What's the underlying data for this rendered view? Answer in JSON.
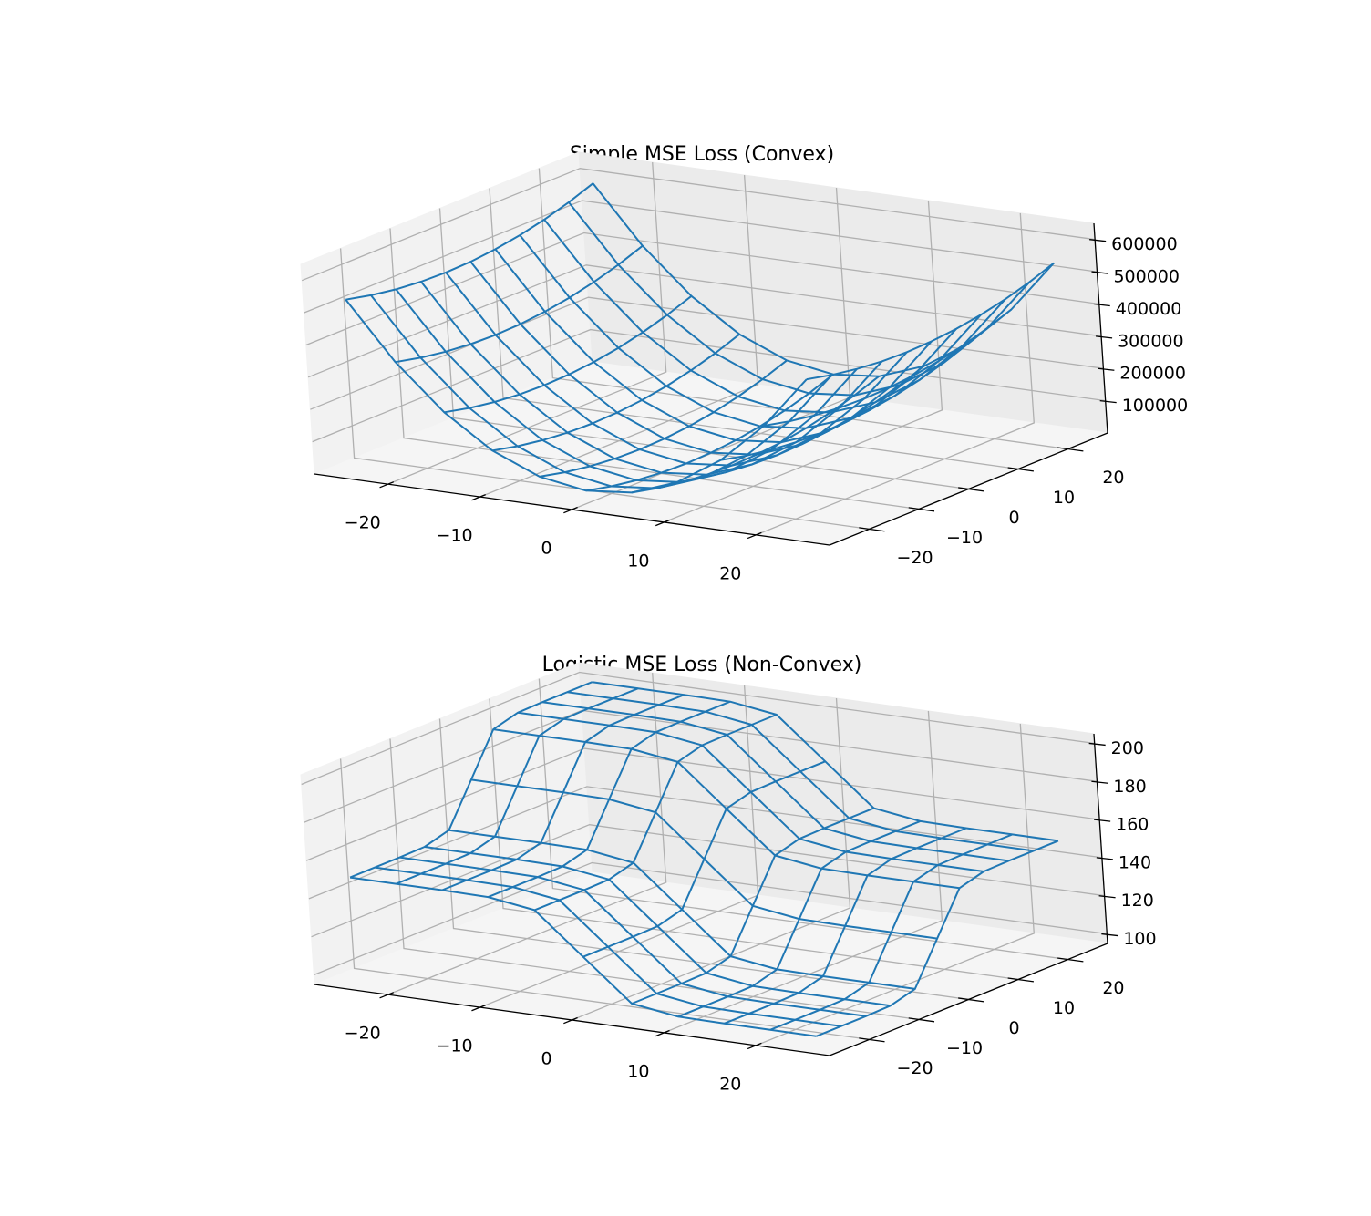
{
  "chart_data": [
    {
      "type": "wireframe3d",
      "title": "Simple MSE Loss (Convex)",
      "color": "#1f77b4",
      "grid": true,
      "x": [
        -25,
        -20,
        -15,
        -10,
        -5,
        0,
        5,
        10,
        15,
        20,
        25
      ],
      "y": [
        -25,
        -20,
        -15,
        -10,
        -5,
        0,
        5,
        10,
        15,
        20,
        25
      ],
      "z": [
        [
          533750,
          360000,
          223750,
          125000,
          63750,
          40000,
          53750,
          105000,
          193750,
          320000,
          483750
        ],
        [
          516250,
          342500,
          206250,
          107500,
          46250,
          22500,
          36250,
          87500,
          176250,
          302500,
          466250
        ],
        [
          503750,
          330000,
          193750,
          95000,
          33750,
          10000,
          23750,
          75000,
          163750,
          290000,
          453750
        ],
        [
          496250,
          322500,
          186250,
          87500,
          26250,
          2500,
          16250,
          67500,
          156250,
          282500,
          446250
        ],
        [
          493750,
          320000,
          183750,
          85000,
          23750,
          0,
          13750,
          65000,
          153750,
          280000,
          443750
        ],
        [
          496250,
          322500,
          186250,
          87500,
          26250,
          2500,
          16250,
          67500,
          156250,
          282500,
          446250
        ],
        [
          503750,
          330000,
          193750,
          95000,
          33750,
          10000,
          23750,
          75000,
          163750,
          290000,
          453750
        ],
        [
          516250,
          342500,
          206250,
          107500,
          46250,
          22500,
          36250,
          87500,
          176250,
          302500,
          466250
        ],
        [
          533750,
          360000,
          223750,
          125000,
          63750,
          40000,
          53750,
          105000,
          193750,
          320000,
          483750
        ],
        [
          556250,
          382500,
          246250,
          147500,
          86250,
          62500,
          76250,
          127500,
          216250,
          342500,
          506250
        ],
        [
          583750,
          410000,
          273750,
          175000,
          113750,
          90000,
          103750,
          155000,
          243750,
          370000,
          533750
        ]
      ],
      "xlim": [
        -28,
        28
      ],
      "ylim": [
        -28,
        28
      ],
      "zlim": [
        0,
        650000
      ],
      "xticks": [
        {
          "value": -20,
          "label": "−20"
        },
        {
          "value": -10,
          "label": "−10"
        },
        0,
        10,
        20
      ],
      "yticks": [
        {
          "value": -20,
          "label": "−20"
        },
        {
          "value": -10,
          "label": "−10"
        },
        0,
        10,
        20
      ],
      "zticks": [
        100000,
        200000,
        300000,
        400000,
        500000,
        600000
      ]
    },
    {
      "type": "wireframe3d",
      "title": "Logistic MSE Loss (Non-Convex)",
      "color": "#1f77b4",
      "grid": true,
      "x": [
        -25,
        -20,
        -15,
        -10,
        -5,
        0,
        5,
        10,
        15,
        20,
        25
      ],
      "y": [
        -25,
        -20,
        -15,
        -10,
        -5,
        0,
        5,
        10,
        15,
        20,
        25
      ],
      "z": [
        [
          150,
          150,
          150,
          149.7,
          146.2,
          125,
          103.8,
          100.3,
          100,
          100,
          100
        ],
        [
          150,
          150,
          150,
          149.7,
          146.2,
          125,
          103.8,
          100.3,
          100,
          100,
          100
        ],
        [
          150,
          150,
          150,
          149.7,
          146.2,
          125,
          103.8,
          100.3,
          100,
          100,
          100
        ],
        [
          150.3,
          150.3,
          150.3,
          150,
          146.5,
          125.3,
          104.1,
          100.6,
          100.3,
          100.3,
          100.3
        ],
        [
          153.8,
          153.8,
          153.8,
          153.5,
          150,
          128.8,
          107.6,
          104.1,
          103.8,
          103.8,
          103.8
        ],
        [
          175,
          175,
          175,
          174.7,
          171.2,
          150,
          128.8,
          125.3,
          125,
          125,
          125
        ],
        [
          196.2,
          196.2,
          196.2,
          195.9,
          192.4,
          171.2,
          150,
          146.5,
          146.2,
          146.2,
          146.2
        ],
        [
          199.7,
          199.7,
          199.7,
          199.4,
          195.9,
          174.7,
          153.5,
          150,
          149.7,
          149.7,
          149.7
        ],
        [
          200,
          200,
          200,
          199.7,
          196.2,
          175,
          153.8,
          150.3,
          150,
          150,
          150
        ],
        [
          200,
          200,
          200,
          199.7,
          196.2,
          175,
          153.8,
          150.3,
          150,
          150,
          150
        ],
        [
          200,
          200,
          200,
          199.7,
          196.2,
          175,
          153.8,
          150.3,
          150,
          150,
          150
        ]
      ],
      "xlim": [
        -28,
        28
      ],
      "ylim": [
        -28,
        28
      ],
      "zlim": [
        95,
        205
      ],
      "xticks": [
        {
          "value": -20,
          "label": "−20"
        },
        {
          "value": -10,
          "label": "−10"
        },
        0,
        10,
        20
      ],
      "yticks": [
        {
          "value": -20,
          "label": "−20"
        },
        {
          "value": -10,
          "label": "−10"
        },
        0,
        10,
        20
      ],
      "zticks": [
        100,
        120,
        140,
        160,
        180,
        200
      ]
    }
  ]
}
